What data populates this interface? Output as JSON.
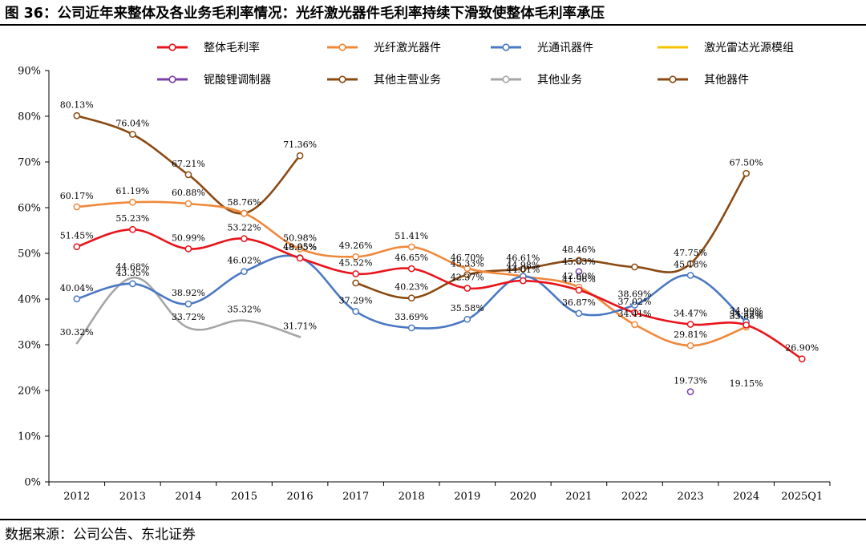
{
  "header": {
    "title": "图 36：公司近年来整体及各业务毛利率情况：光纤激光器件毛利率持续下滑致使整体毛利率承压"
  },
  "footer": {
    "source": "数据来源：公司公告、东北证券"
  },
  "chart_data": {
    "type": "line",
    "title": "",
    "xlabel": "",
    "ylabel": "",
    "ylim": [
      0,
      90
    ],
    "y_ticks": [
      "0%",
      "10%",
      "20%",
      "30%",
      "40%",
      "50%",
      "60%",
      "70%",
      "80%",
      "90%"
    ],
    "categories": [
      "2012",
      "2013",
      "2014",
      "2015",
      "2016",
      "2017",
      "2018",
      "2019",
      "2020",
      "2021",
      "2022",
      "2023",
      "2024",
      "2025Q1"
    ],
    "legend_position": "top",
    "series": [
      {
        "name": "整体毛利率",
        "color": "#e8141b",
        "values": [
          51.45,
          55.23,
          50.99,
          53.22,
          48.95,
          45.52,
          46.65,
          42.37,
          44.01,
          41.96,
          37.02,
          34.47,
          34.32,
          26.9
        ],
        "labels": [
          "51.45%",
          "55.23%",
          "50.99%",
          "53.22%",
          "48.95%",
          "45.52%",
          "46.65%",
          "42.37%",
          "44.01%",
          "41.96%",
          "37.02%",
          "34.47%",
          "34.32%",
          "26.90%"
        ]
      },
      {
        "name": "光纤激光器件",
        "color": "#f0883a",
        "values": [
          60.17,
          61.19,
          60.88,
          58.76,
          50.98,
          49.26,
          51.41,
          46.7,
          44.98,
          42.6,
          34.41,
          29.81,
          33.88,
          null
        ],
        "labels": [
          "60.17%",
          "61.19%",
          "60.88%",
          "58.76%",
          "50.98%",
          "49.26%",
          "51.41%",
          "46.70%",
          "44.98%",
          "42.60%",
          "34.41%",
          "29.81%",
          "33.88%",
          ""
        ]
      },
      {
        "name": "光通讯器件",
        "color": "#4a78c2",
        "values": [
          40.04,
          43.35,
          38.92,
          46.02,
          49.05,
          37.29,
          33.69,
          35.58,
          44.98,
          36.87,
          38.69,
          45.18,
          34.99,
          null
        ],
        "labels": [
          "40.04%",
          "43.35%",
          "38.92%",
          "46.02%",
          "49.05%",
          "37.29%",
          "33.69%",
          "35.58%",
          "",
          "36.87%",
          "38.69%",
          "45.18%",
          "34.99%",
          ""
        ]
      },
      {
        "name": "激光雷达光源模组",
        "color": "#f5c200",
        "values": [
          null,
          null,
          null,
          null,
          null,
          null,
          null,
          null,
          null,
          null,
          null,
          null,
          null,
          null
        ],
        "labels": [
          "",
          "",
          "",
          "",
          "",
          "",
          "",
          "",
          "",
          "",
          "",
          "",
          "",
          ""
        ]
      },
      {
        "name": "铌酸锂调制器",
        "color": "#7a3fa8",
        "values": [
          null,
          null,
          null,
          null,
          null,
          null,
          null,
          null,
          null,
          46.0,
          null,
          19.73,
          null,
          null
        ],
        "labels": [
          "",
          "",
          "",
          "",
          "",
          "",
          "",
          "",
          "",
          "",
          "",
          "19.73%",
          "",
          ""
        ]
      },
      {
        "name": "其他主营业务",
        "color": "#8a4a12",
        "values": [
          null,
          null,
          null,
          null,
          null,
          43.52,
          40.23,
          45.33,
          46.61,
          48.46,
          47.02,
          47.75,
          67.5,
          null
        ],
        "labels": [
          "",
          "",
          "",
          "",
          "",
          "",
          "40.23%",
          "45.33%",
          "46.61%",
          "48.46%",
          "",
          "47.75%",
          "67.50%",
          ""
        ]
      },
      {
        "name": "其他业务",
        "color": "#a6a6a6",
        "values": [
          30.32,
          44.68,
          33.72,
          35.32,
          31.71,
          null,
          null,
          null,
          null,
          null,
          null,
          null,
          null,
          null
        ],
        "labels": [
          "30.32%",
          "44.68%",
          "33.72%",
          "35.32%",
          "31.71%",
          "",
          "",
          "",
          "",
          "",
          "",
          "",
          "",
          ""
        ]
      },
      {
        "name": "其他器件",
        "color": "#8a4a12",
        "values": [
          80.13,
          76.04,
          67.21,
          58.76,
          71.36,
          null,
          null,
          null,
          null,
          null,
          null,
          null,
          null,
          null
        ],
        "labels": [
          "80.13%",
          "76.04%",
          "67.21%",
          "",
          "71.36%",
          "",
          "",
          "",
          "",
          "",
          "",
          "",
          "",
          ""
        ]
      }
    ],
    "extra_labels": [
      {
        "text": "45.83%",
        "x": "2021",
        "y": 45.83
      },
      {
        "text": "19.15%",
        "x": "2024",
        "y": 19.15
      }
    ]
  }
}
